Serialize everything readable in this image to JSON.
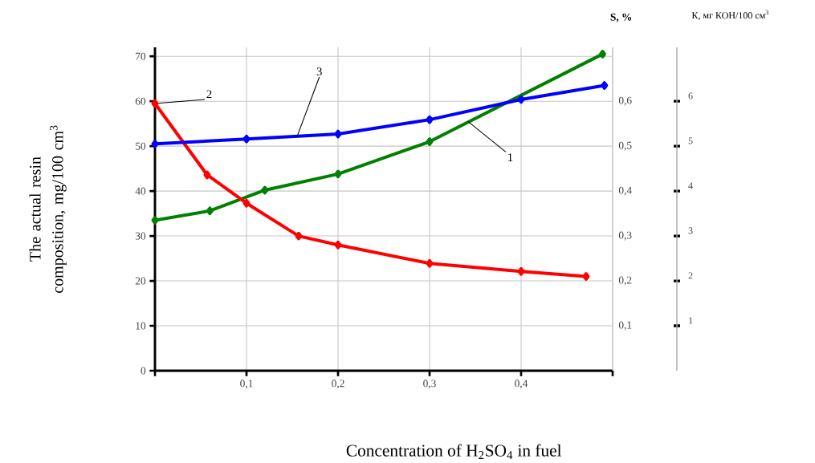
{
  "chart_data": {
    "type": "line",
    "xlabel": "Concentration of H$_{2}$SO$_{4}$ in fuel",
    "ylabel": "The actual resin composition, mg/100 cm$^{3}$",
    "y2label": "S, %",
    "y3label": "К,  мг КОН/100 см$^{3}$",
    "xlim": [
      0,
      0.5
    ],
    "xticks": [
      {
        "value": 0,
        "label": null
      },
      {
        "value": 0.1,
        "label": "0,1"
      },
      {
        "value": 0.2,
        "label": "0,2"
      },
      {
        "value": 0.3,
        "label": "0,3"
      },
      {
        "value": 0.4,
        "label": "0,4"
      },
      {
        "value": 0.5,
        "label": null
      }
    ],
    "ylim": [
      0,
      72
    ],
    "yticks": [
      0,
      10,
      20,
      30,
      40,
      50,
      60,
      70
    ],
    "y2lim": [
      0,
      0.72
    ],
    "y2ticks": [
      {
        "value": 0.1,
        "label": "0,1"
      },
      {
        "value": 0.2,
        "label": "0,2"
      },
      {
        "value": 0.3,
        "label": "0,3"
      },
      {
        "value": 0.4,
        "label": "0,4"
      },
      {
        "value": 0.5,
        "label": "0,5"
      },
      {
        "value": 0.6,
        "label": "0,6"
      }
    ],
    "y3lim": [
      0,
      7.2
    ],
    "y3ticks": [
      1,
      2,
      3,
      4,
      5,
      6
    ],
    "grid": true,
    "marker": "diamond",
    "series": [
      {
        "color": "#008000",
        "x": [
          0,
          0.06,
          0.12,
          0.2,
          0.3,
          0.489
        ],
        "values": [
          33.5,
          35.6,
          40.2,
          43.8,
          51,
          70.5
        ]
      },
      {
        "color": "#ff0000",
        "x": [
          0,
          0.057,
          0.1,
          0.157,
          0.2,
          0.3,
          0.4,
          0.471
        ],
        "values": [
          59.5,
          43.6,
          37.3,
          30,
          28,
          23.9,
          22.1,
          21
        ]
      },
      {
        "color": "#0000ff",
        "x": [
          0,
          0.1,
          0.2,
          0.3,
          0.4,
          0.491
        ],
        "values": [
          50.5,
          51.6,
          52.7,
          55.9,
          60.4,
          63.5
        ]
      }
    ],
    "annotations": [
      {
        "text": "1",
        "x": 0.342,
        "y": 55.5
      },
      {
        "text": "2",
        "x": 0,
        "y": 59.5
      },
      {
        "text": "3",
        "x": 0.155,
        "y": 52
      }
    ]
  }
}
